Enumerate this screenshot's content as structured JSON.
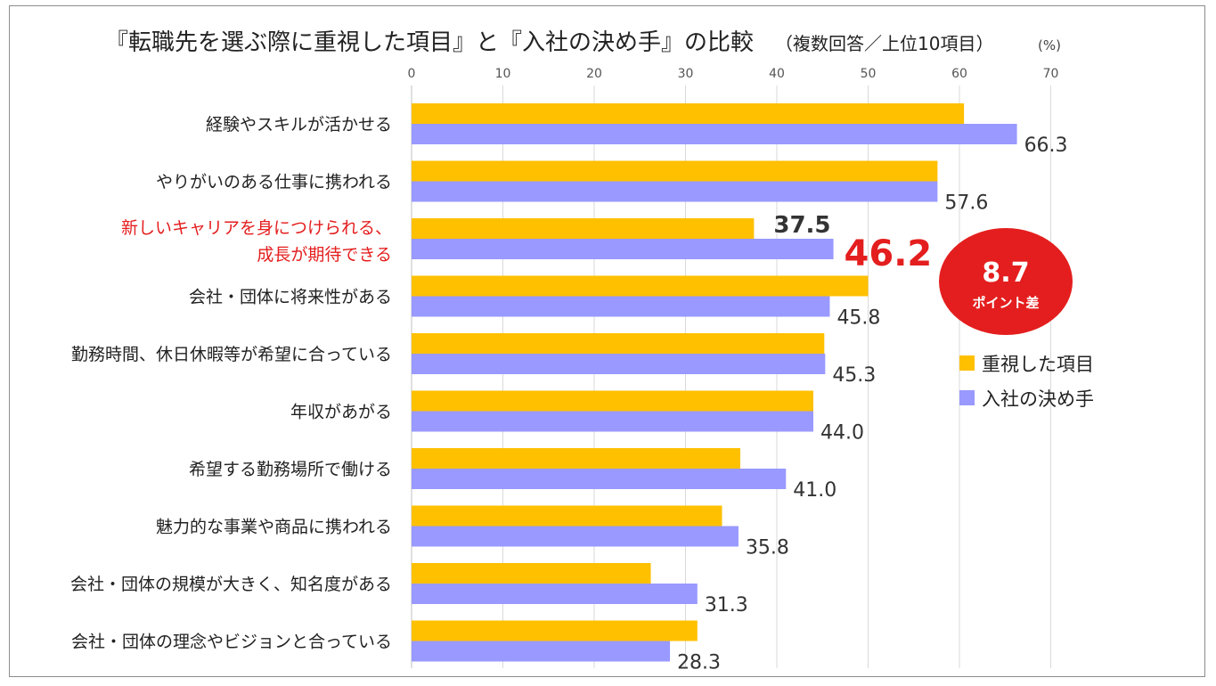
{
  "chart_data": {
    "type": "bar",
    "orientation": "horizontal",
    "title": "『転職先を選ぶ際に重視した項目』と『入社の決め手』の比較",
    "subtitle": "（複数回答／上位10項目）",
    "unit": "(%)",
    "xlim": [
      0,
      70
    ],
    "ticks": [
      0,
      10,
      20,
      30,
      40,
      50,
      60,
      70
    ],
    "grid": true,
    "legend_position": "right",
    "categories": [
      "経験やスキルが活かせる",
      "やりがいのある仕事に携われる",
      "新しいキャリアを身につけられる、\n成長が期待できる",
      "会社・団体に将来性がある",
      "勤務時間、休日休暇等が希望に合っている",
      "年収があがる",
      "希望する勤務場所で働ける",
      "魅力的な事業や商品に携われる",
      "会社・団体の規模が大きく、知名度がある",
      "会社・団体の理念やビジョンと合っている"
    ],
    "highlight_index": 2,
    "series": [
      {
        "name": "重視した項目",
        "color": "#ffc000",
        "values": [
          60.5,
          57.6,
          37.5,
          50.0,
          45.2,
          44.0,
          36.0,
          34.0,
          26.2,
          31.3
        ]
      },
      {
        "name": "入社の決め手",
        "color": "#9999ff",
        "values": [
          66.3,
          57.6,
          46.2,
          45.8,
          45.3,
          44.0,
          41.0,
          35.8,
          31.3,
          28.3
        ]
      }
    ],
    "data_labels": [
      "66.3",
      "57.6",
      "46.2",
      "45.8",
      "45.3",
      "44.0",
      "41.0",
      "35.8",
      "31.3",
      "28.3"
    ],
    "highlight_label_importance": "37.5",
    "callout": {
      "value": "8.7",
      "text": "ポイント差",
      "color": "#e41e1e"
    }
  }
}
